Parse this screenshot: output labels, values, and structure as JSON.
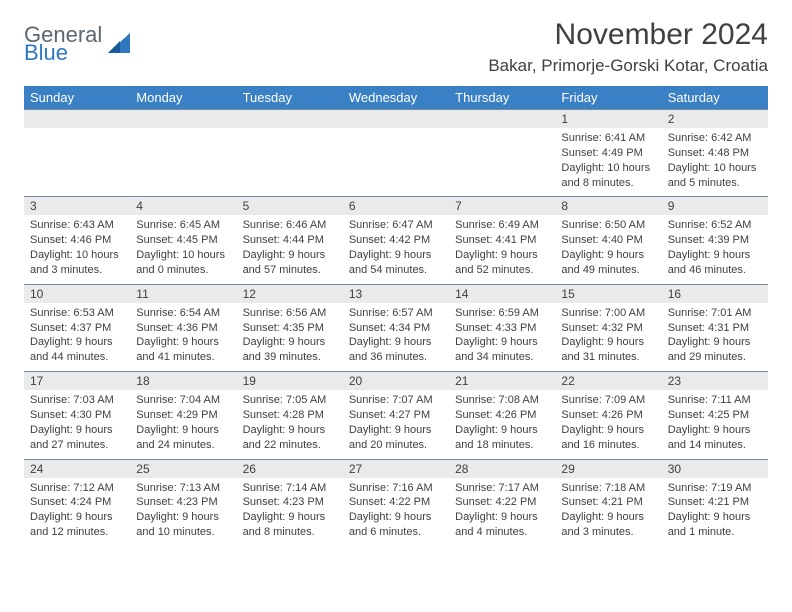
{
  "logo": {
    "word1": "General",
    "word2": "Blue"
  },
  "title": "November 2024",
  "location": "Bakar, Primorje-Gorski Kotar, Croatia",
  "colors": {
    "header_bg": "#3a80c4",
    "header_text": "#ffffff",
    "daynum_bg": "#e9eaeb",
    "border": "#7a8a99",
    "body_text": "#404040",
    "logo_gray": "#5c6770",
    "logo_blue": "#2f78bf"
  },
  "dayNames": [
    "Sunday",
    "Monday",
    "Tuesday",
    "Wednesday",
    "Thursday",
    "Friday",
    "Saturday"
  ],
  "weeks": [
    [
      null,
      null,
      null,
      null,
      null,
      {
        "n": "1",
        "sunrise": "6:41 AM",
        "sunset": "4:49 PM",
        "daylight": "10 hours and 8 minutes."
      },
      {
        "n": "2",
        "sunrise": "6:42 AM",
        "sunset": "4:48 PM",
        "daylight": "10 hours and 5 minutes."
      }
    ],
    [
      {
        "n": "3",
        "sunrise": "6:43 AM",
        "sunset": "4:46 PM",
        "daylight": "10 hours and 3 minutes."
      },
      {
        "n": "4",
        "sunrise": "6:45 AM",
        "sunset": "4:45 PM",
        "daylight": "10 hours and 0 minutes."
      },
      {
        "n": "5",
        "sunrise": "6:46 AM",
        "sunset": "4:44 PM",
        "daylight": "9 hours and 57 minutes."
      },
      {
        "n": "6",
        "sunrise": "6:47 AM",
        "sunset": "4:42 PM",
        "daylight": "9 hours and 54 minutes."
      },
      {
        "n": "7",
        "sunrise": "6:49 AM",
        "sunset": "4:41 PM",
        "daylight": "9 hours and 52 minutes."
      },
      {
        "n": "8",
        "sunrise": "6:50 AM",
        "sunset": "4:40 PM",
        "daylight": "9 hours and 49 minutes."
      },
      {
        "n": "9",
        "sunrise": "6:52 AM",
        "sunset": "4:39 PM",
        "daylight": "9 hours and 46 minutes."
      }
    ],
    [
      {
        "n": "10",
        "sunrise": "6:53 AM",
        "sunset": "4:37 PM",
        "daylight": "9 hours and 44 minutes."
      },
      {
        "n": "11",
        "sunrise": "6:54 AM",
        "sunset": "4:36 PM",
        "daylight": "9 hours and 41 minutes."
      },
      {
        "n": "12",
        "sunrise": "6:56 AM",
        "sunset": "4:35 PM",
        "daylight": "9 hours and 39 minutes."
      },
      {
        "n": "13",
        "sunrise": "6:57 AM",
        "sunset": "4:34 PM",
        "daylight": "9 hours and 36 minutes."
      },
      {
        "n": "14",
        "sunrise": "6:59 AM",
        "sunset": "4:33 PM",
        "daylight": "9 hours and 34 minutes."
      },
      {
        "n": "15",
        "sunrise": "7:00 AM",
        "sunset": "4:32 PM",
        "daylight": "9 hours and 31 minutes."
      },
      {
        "n": "16",
        "sunrise": "7:01 AM",
        "sunset": "4:31 PM",
        "daylight": "9 hours and 29 minutes."
      }
    ],
    [
      {
        "n": "17",
        "sunrise": "7:03 AM",
        "sunset": "4:30 PM",
        "daylight": "9 hours and 27 minutes."
      },
      {
        "n": "18",
        "sunrise": "7:04 AM",
        "sunset": "4:29 PM",
        "daylight": "9 hours and 24 minutes."
      },
      {
        "n": "19",
        "sunrise": "7:05 AM",
        "sunset": "4:28 PM",
        "daylight": "9 hours and 22 minutes."
      },
      {
        "n": "20",
        "sunrise": "7:07 AM",
        "sunset": "4:27 PM",
        "daylight": "9 hours and 20 minutes."
      },
      {
        "n": "21",
        "sunrise": "7:08 AM",
        "sunset": "4:26 PM",
        "daylight": "9 hours and 18 minutes."
      },
      {
        "n": "22",
        "sunrise": "7:09 AM",
        "sunset": "4:26 PM",
        "daylight": "9 hours and 16 minutes."
      },
      {
        "n": "23",
        "sunrise": "7:11 AM",
        "sunset": "4:25 PM",
        "daylight": "9 hours and 14 minutes."
      }
    ],
    [
      {
        "n": "24",
        "sunrise": "7:12 AM",
        "sunset": "4:24 PM",
        "daylight": "9 hours and 12 minutes."
      },
      {
        "n": "25",
        "sunrise": "7:13 AM",
        "sunset": "4:23 PM",
        "daylight": "9 hours and 10 minutes."
      },
      {
        "n": "26",
        "sunrise": "7:14 AM",
        "sunset": "4:23 PM",
        "daylight": "9 hours and 8 minutes."
      },
      {
        "n": "27",
        "sunrise": "7:16 AM",
        "sunset": "4:22 PM",
        "daylight": "9 hours and 6 minutes."
      },
      {
        "n": "28",
        "sunrise": "7:17 AM",
        "sunset": "4:22 PM",
        "daylight": "9 hours and 4 minutes."
      },
      {
        "n": "29",
        "sunrise": "7:18 AM",
        "sunset": "4:21 PM",
        "daylight": "9 hours and 3 minutes."
      },
      {
        "n": "30",
        "sunrise": "7:19 AM",
        "sunset": "4:21 PM",
        "daylight": "9 hours and 1 minute."
      }
    ]
  ],
  "labels": {
    "sunrise": "Sunrise:",
    "sunset": "Sunset:",
    "daylight": "Daylight:"
  }
}
